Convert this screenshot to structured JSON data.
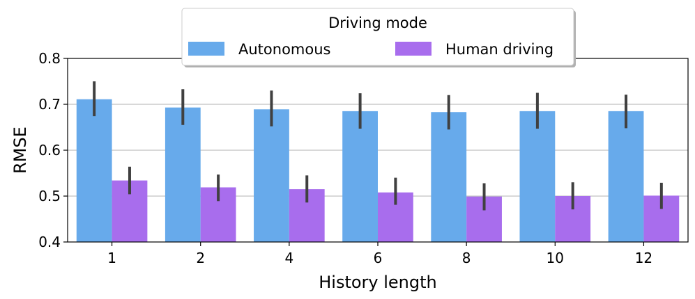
{
  "chart_data": {
    "type": "bar",
    "xlabel": "History length",
    "ylabel": "RMSE",
    "ylim": [
      0.4,
      0.8
    ],
    "yticks": [
      "0.4",
      "0.5",
      "0.6",
      "0.7",
      "0.8"
    ],
    "grid": "horizontal",
    "categories": [
      "1",
      "2",
      "4",
      "6",
      "8",
      "10",
      "12"
    ],
    "legend": {
      "title": "Driving mode",
      "placement": "top-center"
    },
    "series": [
      {
        "name": "Autonomous",
        "color": "#67aaeb",
        "values": [
          0.711,
          0.693,
          0.689,
          0.685,
          0.683,
          0.685,
          0.685
        ],
        "error_low": [
          0.674,
          0.655,
          0.652,
          0.647,
          0.645,
          0.647,
          0.648
        ],
        "error_high": [
          0.75,
          0.733,
          0.73,
          0.724,
          0.72,
          0.725,
          0.721
        ]
      },
      {
        "name": "Human driving",
        "color": "#a86ded",
        "values": [
          0.534,
          0.519,
          0.515,
          0.508,
          0.499,
          0.5,
          0.501
        ],
        "error_low": [
          0.504,
          0.489,
          0.486,
          0.481,
          0.469,
          0.471,
          0.472
        ],
        "error_high": [
          0.564,
          0.547,
          0.545,
          0.54,
          0.528,
          0.53,
          0.529
        ]
      }
    ]
  }
}
